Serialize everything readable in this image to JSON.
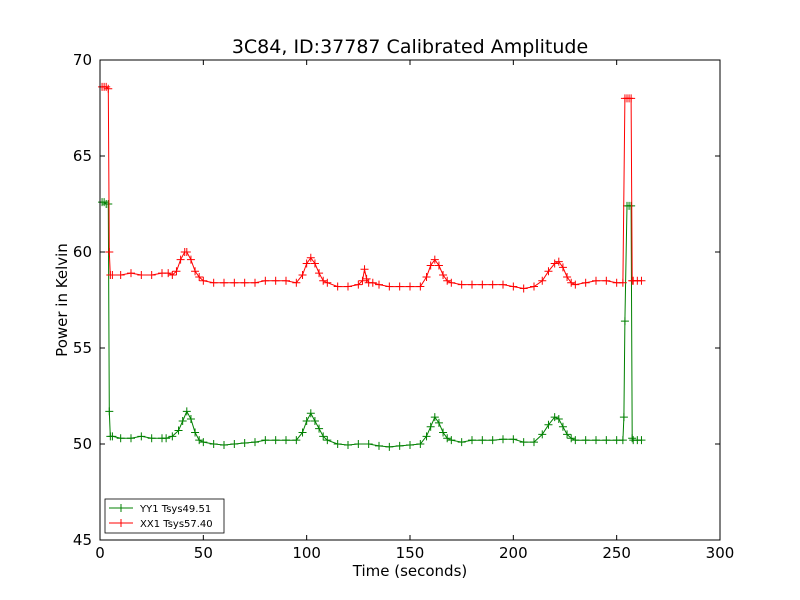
{
  "chart_data": {
    "type": "line",
    "title": "3C84, ID:37787 Calibrated Amplitude",
    "xlabel": "Time (seconds)",
    "ylabel": "Power in Kelvin",
    "xlim": [
      0,
      300
    ],
    "ylim": [
      45,
      70
    ],
    "xticks": [
      "0",
      "50",
      "100",
      "150",
      "200",
      "250",
      "300"
    ],
    "yticks": [
      "45",
      "50",
      "55",
      "60",
      "65",
      "70"
    ],
    "grid": false,
    "legend_position": "lower-left",
    "series": [
      {
        "name": "YY1 Tsys49.51",
        "color": "#008000",
        "marker": "+",
        "x": [
          1,
          2,
          3,
          4,
          4.5,
          5,
          6,
          10,
          15,
          20,
          25,
          30,
          32,
          35,
          38,
          40,
          42,
          44,
          46,
          48,
          50,
          55,
          60,
          65,
          70,
          75,
          80,
          85,
          90,
          95,
          98,
          100,
          102,
          104,
          106,
          108,
          110,
          115,
          120,
          125,
          130,
          135,
          140,
          145,
          150,
          155,
          158,
          160,
          162,
          164,
          166,
          168,
          170,
          175,
          180,
          185,
          190,
          195,
          200,
          205,
          210,
          214,
          217,
          220,
          222,
          224,
          226,
          228,
          230,
          235,
          240,
          245,
          250,
          253,
          253.5,
          254,
          255,
          256,
          257,
          257.5,
          258,
          260,
          262
        ],
        "y": [
          62.6,
          62.6,
          62.5,
          62.5,
          51.7,
          50.4,
          50.4,
          50.3,
          50.3,
          50.4,
          50.3,
          50.3,
          50.3,
          50.4,
          50.7,
          51.2,
          51.7,
          51.3,
          50.6,
          50.2,
          50.1,
          50.0,
          49.95,
          50.0,
          50.05,
          50.1,
          50.2,
          50.2,
          50.2,
          50.2,
          50.6,
          51.2,
          51.6,
          51.2,
          50.8,
          50.4,
          50.2,
          50.0,
          49.95,
          50.0,
          50.0,
          49.9,
          49.85,
          49.9,
          49.95,
          50.0,
          50.4,
          50.9,
          51.4,
          51.1,
          50.6,
          50.3,
          50.2,
          50.1,
          50.2,
          50.2,
          50.2,
          50.25,
          50.25,
          50.1,
          50.1,
          50.5,
          51.0,
          51.4,
          51.3,
          50.9,
          50.5,
          50.3,
          50.2,
          50.2,
          50.2,
          50.2,
          50.2,
          50.2,
          51.4,
          56.4,
          62.4,
          62.4,
          62.4,
          50.3,
          50.2,
          50.2,
          50.2
        ]
      },
      {
        "name": "XX1 Tsys57.40",
        "color": "#ff0000",
        "marker": "+",
        "x": [
          1,
          2,
          3,
          4,
          4.5,
          5,
          6,
          10,
          15,
          20,
          25,
          30,
          33,
          35,
          37,
          39,
          41,
          42,
          44,
          46,
          48,
          50,
          55,
          60,
          65,
          70,
          75,
          80,
          85,
          90,
          95,
          98,
          100,
          102,
          104,
          106,
          108,
          110,
          115,
          120,
          125,
          127,
          128,
          129,
          130,
          132,
          135,
          140,
          145,
          150,
          155,
          158,
          160,
          162,
          164,
          166,
          168,
          170,
          175,
          180,
          185,
          190,
          195,
          200,
          205,
          210,
          214,
          217,
          220,
          222,
          224,
          226,
          228,
          230,
          235,
          240,
          245,
          250,
          253,
          254,
          255,
          256,
          257,
          257.5,
          258,
          260,
          262
        ],
        "y": [
          68.6,
          68.6,
          68.6,
          68.5,
          60.0,
          58.8,
          58.8,
          58.8,
          58.9,
          58.8,
          58.8,
          58.9,
          58.9,
          58.8,
          59.0,
          59.6,
          60.0,
          60.0,
          59.6,
          59.0,
          58.7,
          58.5,
          58.4,
          58.4,
          58.4,
          58.4,
          58.4,
          58.5,
          58.5,
          58.5,
          58.4,
          58.8,
          59.4,
          59.7,
          59.4,
          58.9,
          58.5,
          58.4,
          58.2,
          58.2,
          58.3,
          58.5,
          59.1,
          58.6,
          58.4,
          58.4,
          58.3,
          58.2,
          58.2,
          58.2,
          58.2,
          58.7,
          59.3,
          59.6,
          59.3,
          58.8,
          58.5,
          58.4,
          58.3,
          58.3,
          58.3,
          58.3,
          58.3,
          58.2,
          58.1,
          58.2,
          58.5,
          59.0,
          59.4,
          59.5,
          59.2,
          58.7,
          58.4,
          58.3,
          58.4,
          58.5,
          58.5,
          58.4,
          58.4,
          68.0,
          68.0,
          68.0,
          68.0,
          58.5,
          58.5,
          58.5,
          58.5
        ]
      }
    ]
  }
}
